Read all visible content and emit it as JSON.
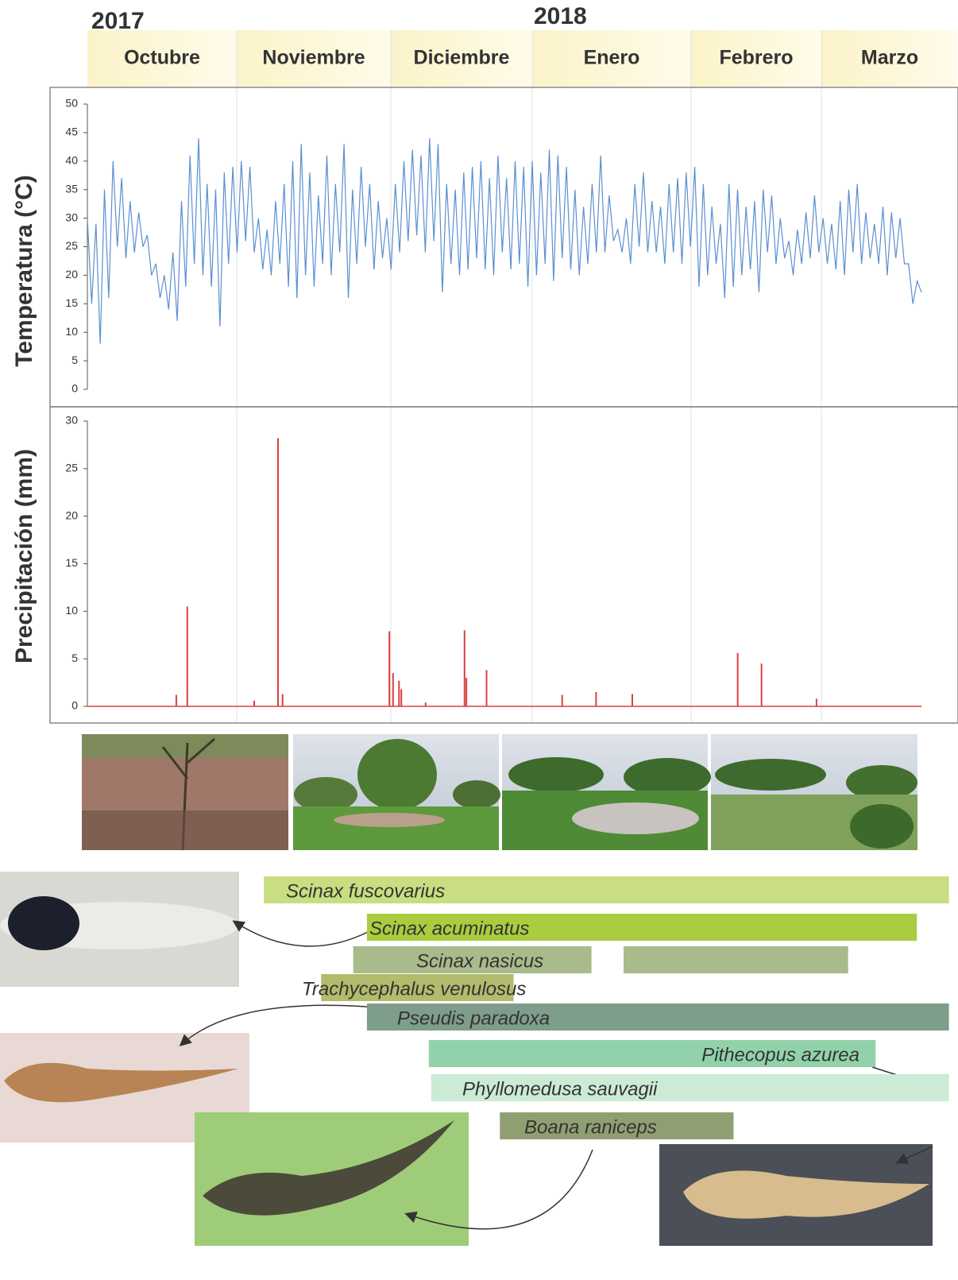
{
  "years": [
    "2017",
    "2018"
  ],
  "months": [
    "Octubre",
    "Noviembre",
    "Diciembre",
    "Enero",
    "Febrero",
    "Marzo"
  ],
  "chart_data": [
    {
      "type": "line",
      "ylabel": "Temperatura (°C)",
      "color": "#5b8fd0",
      "xlim": [
        0,
        182
      ],
      "ylim": [
        0,
        50
      ],
      "yticks": [
        0,
        5,
        10,
        15,
        20,
        25,
        30,
        35,
        40,
        45,
        50
      ],
      "values": [
        30,
        15,
        29,
        8,
        35,
        16,
        40,
        25,
        37,
        23,
        33,
        24,
        31,
        25,
        27,
        20,
        22,
        16,
        20,
        14,
        24,
        12,
        33,
        18,
        41,
        22,
        44,
        20,
        36,
        18,
        35,
        11,
        38,
        22,
        39,
        24,
        40,
        26,
        39,
        24,
        30,
        21,
        28,
        20,
        33,
        22,
        36,
        18,
        40,
        16,
        43,
        20,
        38,
        18,
        34,
        22,
        41,
        20,
        36,
        24,
        43,
        16,
        35,
        22,
        39,
        25,
        36,
        21,
        33,
        23,
        30,
        21,
        36,
        24,
        40,
        26,
        42,
        27,
        41,
        24,
        44,
        26,
        43,
        17,
        36,
        22,
        35,
        20,
        38,
        21,
        39,
        23,
        40,
        21,
        37,
        20,
        41,
        24,
        37,
        21,
        40,
        22,
        39,
        18,
        40,
        20,
        38,
        22,
        42,
        19,
        41,
        23,
        39,
        21,
        35,
        20,
        32,
        22,
        36,
        24,
        41,
        24,
        34,
        26,
        28,
        24,
        30,
        22,
        36,
        25,
        38,
        24,
        33,
        24,
        32,
        22,
        36,
        24,
        37,
        22,
        38,
        25,
        39,
        18,
        36,
        20,
        32,
        22,
        29,
        16,
        36,
        18,
        35,
        20,
        32,
        21,
        33,
        17,
        35,
        24,
        34,
        22,
        30,
        23,
        26,
        20,
        28,
        22,
        31,
        23,
        34,
        24,
        30,
        22,
        29,
        21,
        33,
        20,
        35,
        24,
        36,
        22,
        31,
        23,
        29,
        22,
        32,
        20,
        31,
        23,
        30,
        22,
        22,
        15,
        19,
        17
      ]
    },
    {
      "type": "bar",
      "ylabel": "Precipitación (mm)",
      "color": "#d9413f",
      "xlim": [
        0,
        182
      ],
      "ylim": [
        0,
        30
      ],
      "yticks": [
        0,
        5,
        10,
        15,
        20,
        25,
        30
      ],
      "x": [
        19.4,
        21.8,
        36.4,
        41.6,
        42.6,
        65.9,
        66.7,
        68,
        68.5,
        73.8,
        82.3,
        82.7,
        87.1,
        103.6,
        111,
        118.9,
        141.9,
        147.1,
        159.1
      ],
      "values": [
        1.2,
        10.5,
        0.6,
        28.2,
        1.3,
        7.9,
        3.5,
        2.7,
        1.8,
        0.4,
        8,
        3,
        3.8,
        1.2,
        1.5,
        1.3,
        5.6,
        4.5,
        0.8
      ]
    }
  ],
  "species": [
    {
      "name": "Scinax fuscovarius",
      "color": "#c8de80",
      "segments": [
        [
          38.5,
          188
        ]
      ]
    },
    {
      "name": "Scinax acuminatus",
      "color": "#a9cd3e",
      "segments": [
        [
          61,
          181
        ]
      ]
    },
    {
      "name": "Scinax nasicus",
      "color": "#a9ba8b",
      "segments": [
        [
          58,
          110
        ],
        [
          117,
          166
        ]
      ]
    },
    {
      "name": "Trachycephalus venulosus",
      "color": "#b3bb6c",
      "segments": [
        [
          51,
          93
        ]
      ]
    },
    {
      "name": "Pseudis paradoxa",
      "color": "#7f9d8b",
      "segments": [
        [
          61,
          188
        ]
      ]
    },
    {
      "name": "Pithecopus azurea",
      "color": "#92d2aa",
      "segments": [
        [
          74.5,
          172
        ]
      ]
    },
    {
      "name": "Phyllomedusa sauvagii",
      "color": "#cbebd5",
      "segments": [
        [
          75,
          188
        ]
      ]
    },
    {
      "name": "Boana raniceps",
      "color": "#909f72",
      "segments": [
        [
          90,
          141
        ]
      ]
    }
  ]
}
